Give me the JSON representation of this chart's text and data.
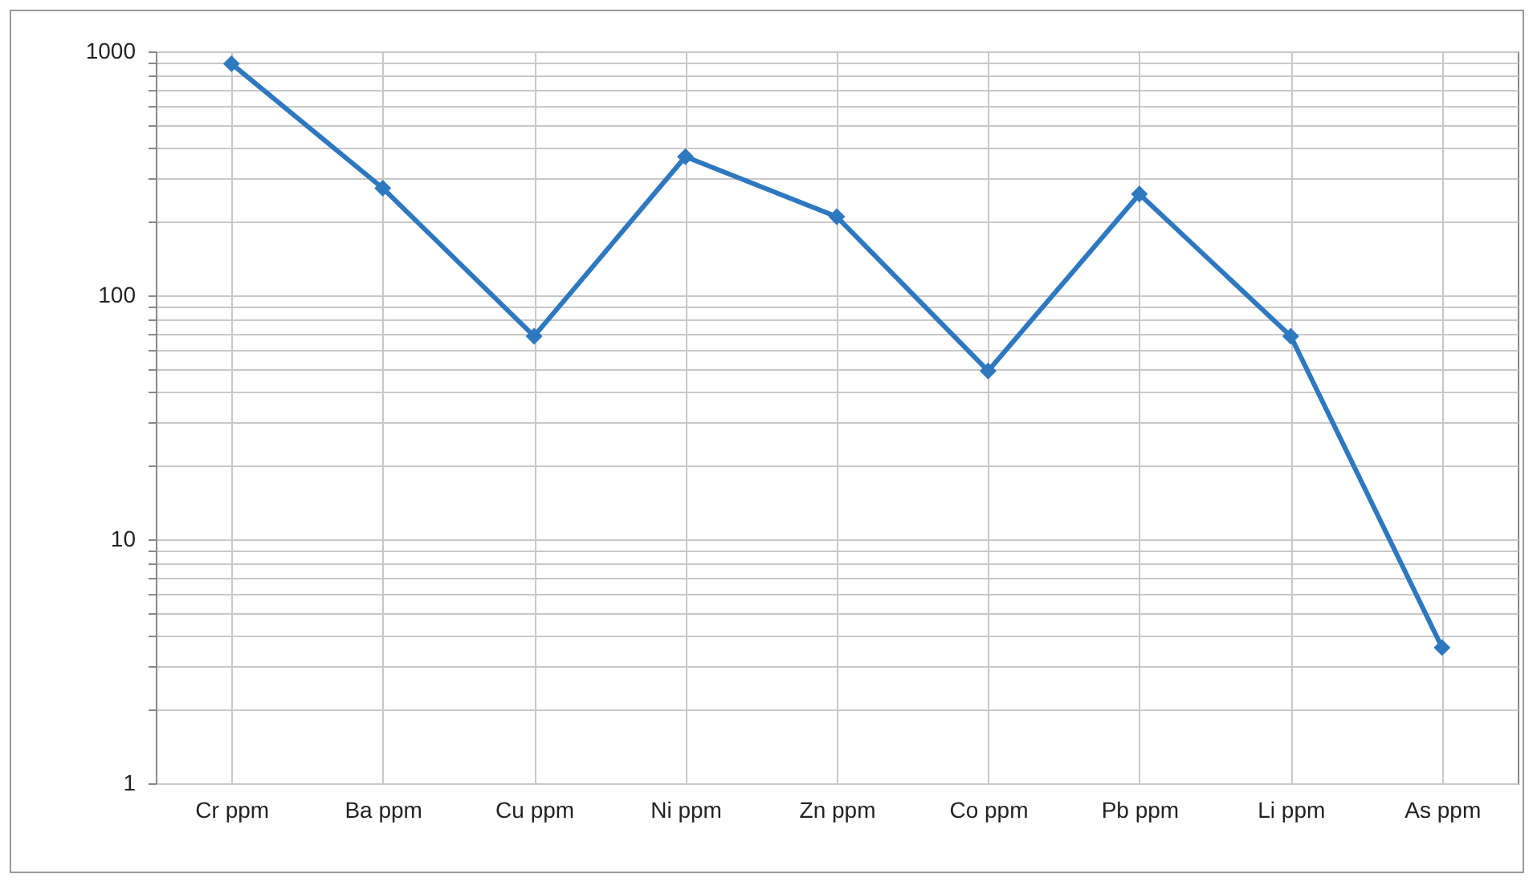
{
  "chart_data": {
    "type": "line",
    "categories": [
      "Cr ppm",
      "Ba ppm",
      "Cu ppm",
      "Ni ppm",
      "Zn ppm",
      "Co ppm",
      "Pb ppm",
      "Li ppm",
      "As ppm"
    ],
    "series": [
      {
        "color": "#2e78c0",
        "values": [
          890,
          275,
          68,
          370,
          210,
          49,
          260,
          68,
          3.6
        ]
      }
    ],
    "log": true,
    "ylim": [
      1,
      1000
    ],
    "yticks": [
      1,
      {
        "value": 2,
        "label": null
      },
      {
        "value": 3,
        "label": null
      },
      {
        "value": 4,
        "label": null
      },
      {
        "value": 5,
        "label": null
      },
      {
        "value": 6,
        "label": null
      },
      {
        "value": 7,
        "label": null
      },
      {
        "value": 8,
        "label": null
      },
      {
        "value": 9,
        "label": null
      },
      10,
      {
        "value": 20,
        "label": null
      },
      {
        "value": 30,
        "label": null
      },
      {
        "value": 40,
        "label": null
      },
      {
        "value": 50,
        "label": null
      },
      {
        "value": 60,
        "label": null
      },
      {
        "value": 70,
        "label": null
      },
      {
        "value": 80,
        "label": null
      },
      {
        "value": 90,
        "label": null
      },
      100,
      {
        "value": 200,
        "label": null
      },
      {
        "value": 300,
        "label": null
      },
      {
        "value": 400,
        "label": null
      },
      {
        "value": 500,
        "label": null
      },
      {
        "value": 600,
        "label": null
      },
      {
        "value": 700,
        "label": null
      },
      {
        "value": 800,
        "label": null
      },
      {
        "value": 900,
        "label": null
      },
      1000
    ],
    "grid": true,
    "marker": "diamond",
    "line_style": "solid"
  }
}
